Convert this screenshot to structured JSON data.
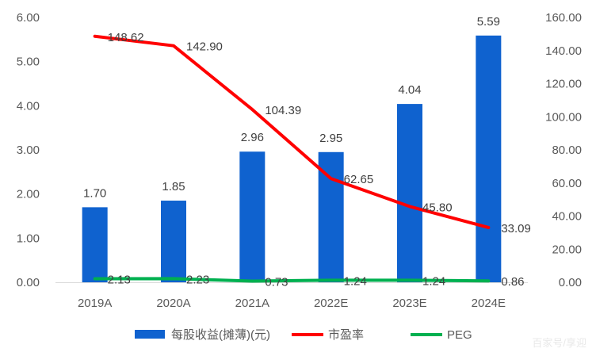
{
  "chart_data": {
    "type": "bar",
    "categories": [
      "2019A",
      "2020A",
      "2021A",
      "2022E",
      "2023E",
      "2024E"
    ],
    "series": [
      {
        "name": "每股收益(摊薄)(元)",
        "type": "bar",
        "axis": "left",
        "values": [
          1.7,
          1.85,
          2.96,
          2.95,
          4.04,
          5.59
        ],
        "labels": [
          "1.70",
          "1.85",
          "2.96",
          "2.95",
          "4.04",
          "5.59"
        ],
        "color": "#0f62cf"
      },
      {
        "name": "市盈率",
        "type": "line",
        "axis": "right",
        "values": [
          148.62,
          142.9,
          104.39,
          62.65,
          45.8,
          33.09
        ],
        "labels": [
          "148.62",
          "142.90",
          "104.39",
          "62.65",
          "45.80",
          "33.09"
        ],
        "color": "#ff0000"
      },
      {
        "name": "PEG",
        "type": "line",
        "axis": "right",
        "values": [
          2.13,
          2.23,
          0.73,
          1.24,
          1.24,
          0.86
        ],
        "labels": [
          "2.13",
          "2.23",
          "0.73",
          "1.24",
          "1.24",
          "0.86"
        ],
        "color": "#00b050"
      }
    ],
    "y_left": {
      "min": 0,
      "max": 6,
      "ticks": [
        "0.00",
        "1.00",
        "2.00",
        "3.00",
        "4.00",
        "5.00",
        "6.00"
      ]
    },
    "y_right": {
      "min": 0,
      "max": 160,
      "ticks": [
        "0.00",
        "20.00",
        "40.00",
        "60.00",
        "80.00",
        "100.00",
        "120.00",
        "140.00",
        "160.00"
      ]
    },
    "grid": false,
    "legend_position": "bottom",
    "watermark": "百家号/享迎"
  }
}
